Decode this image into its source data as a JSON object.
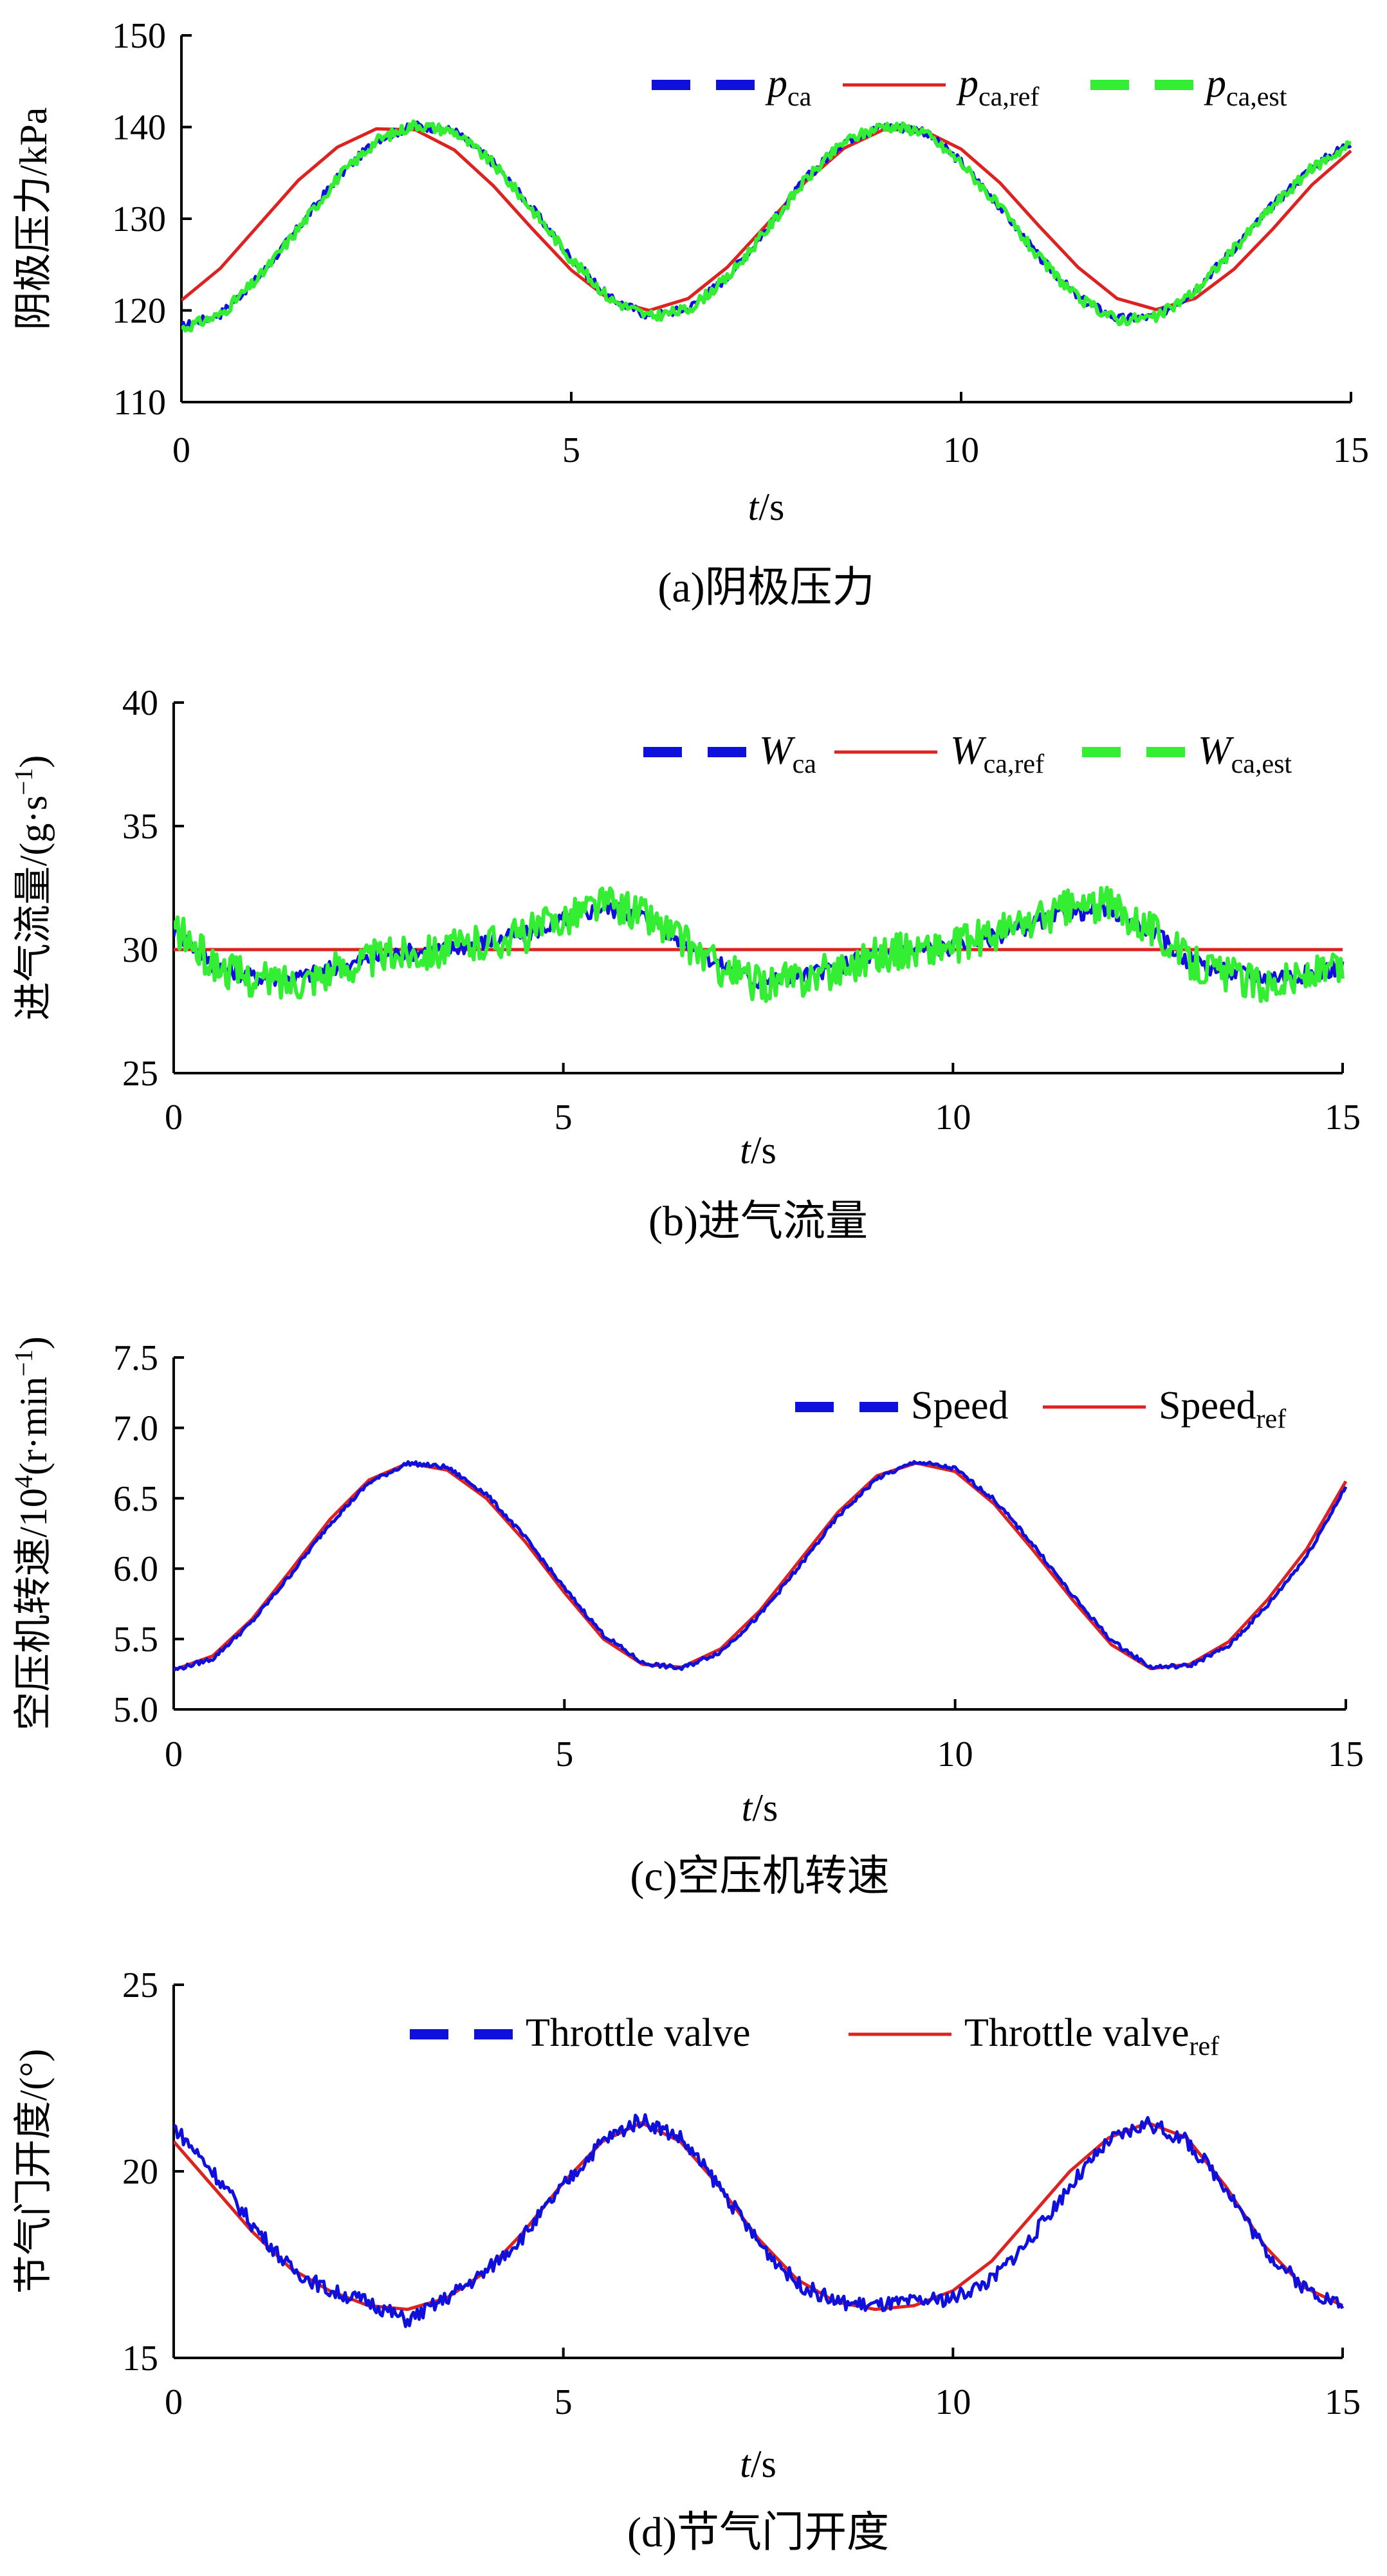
{
  "chart_data": [
    {
      "type": "line",
      "caption": "(a)阴极压力",
      "ylabel_main": "阴极压力/kPa",
      "ylabel_sup": "",
      "ylabel_tail": "",
      "xlabel_var": "t",
      "xlabel_unit": "/s",
      "xlim": [
        0,
        15
      ],
      "ylim": [
        110,
        150
      ],
      "xticks": [
        0,
        5,
        10,
        15
      ],
      "xtick_labels": [
        "0",
        "5",
        "10",
        "15"
      ],
      "yticks": [
        110,
        120,
        130,
        140,
        150
      ],
      "ytick_labels": [
        "110",
        "120",
        "130",
        "140",
        "150"
      ],
      "legend_position": "top-right",
      "series": [
        {
          "key": "meas",
          "label_main": "p",
          "label_sub": "ca",
          "color": "#1010dd",
          "style": "dashed-thick",
          "noise": 0.5,
          "x": [
            0,
            0.5,
            1,
            1.5,
            2,
            2.5,
            3,
            3.5,
            4,
            4.5,
            5,
            5.5,
            6,
            6.5,
            7,
            7.5,
            8,
            8.5,
            9,
            9.5,
            10,
            10.5,
            11,
            11.5,
            12,
            12.5,
            13,
            13.5,
            14,
            14.5,
            15
          ],
          "y": [
            118.2,
            119.6,
            123.7,
            129.0,
            134.5,
            138.6,
            140.2,
            139.6,
            136.1,
            131.1,
            125.7,
            121.3,
            119.4,
            120.2,
            123.6,
            128.8,
            134.3,
            138.5,
            140.1,
            139.7,
            136.2,
            131.3,
            125.8,
            121.4,
            119.1,
            119.3,
            122.2,
            126.8,
            131.5,
            135.6,
            138.4
          ]
        },
        {
          "key": "ref",
          "label_main": "p",
          "label_sub": "ca,ref",
          "color": "#dd2222",
          "style": "solid",
          "x": [
            0,
            0.5,
            1,
            1.5,
            2,
            2.5,
            3,
            3.5,
            4,
            4.5,
            5,
            5.5,
            6,
            6.5,
            7,
            7.5,
            8,
            8.5,
            9,
            9.5,
            10,
            10.5,
            11,
            11.5,
            12,
            12.5,
            13,
            13.5,
            14,
            14.5,
            15
          ],
          "y": [
            121.1,
            124.6,
            129.4,
            134.2,
            137.8,
            139.8,
            139.7,
            137.5,
            133.6,
            128.9,
            124.4,
            121.1,
            120.0,
            121.3,
            124.7,
            129.3,
            134.0,
            137.7,
            139.7,
            139.7,
            137.6,
            133.9,
            129.2,
            124.7,
            121.3,
            120.1,
            121.3,
            124.5,
            128.9,
            133.7,
            137.4
          ]
        },
        {
          "key": "est",
          "label_main": "p",
          "label_sub": "ca,est",
          "color": "#33ee33",
          "style": "dashed-thick",
          "noise": 0.6,
          "x": [
            0,
            0.5,
            1,
            1.5,
            2,
            2.5,
            3,
            3.5,
            4,
            4.5,
            5,
            5.5,
            6,
            6.5,
            7,
            7.5,
            8,
            8.5,
            9,
            9.5,
            10,
            10.5,
            11,
            11.5,
            12,
            12.5,
            13,
            13.5,
            14,
            14.5,
            15
          ],
          "y": [
            118.0,
            119.5,
            123.6,
            128.9,
            134.4,
            138.5,
            140.3,
            139.5,
            136.0,
            131.0,
            125.6,
            121.2,
            119.3,
            120.1,
            123.5,
            128.7,
            134.2,
            138.4,
            140.2,
            139.6,
            136.1,
            131.2,
            125.7,
            121.3,
            119.0,
            119.2,
            122.1,
            126.7,
            131.4,
            135.5,
            138.2
          ]
        }
      ]
    },
    {
      "type": "line",
      "caption": "(b)进气流量",
      "ylabel_main": "进气流量/(g·s",
      "ylabel_sup": "−1",
      "ylabel_tail": ")",
      "xlabel_var": "t",
      "xlabel_unit": "/s",
      "xlim": [
        0,
        15
      ],
      "ylim": [
        25,
        40
      ],
      "xticks": [
        0,
        5,
        10,
        15
      ],
      "xtick_labels": [
        "0",
        "5",
        "10",
        "15"
      ],
      "yticks": [
        25,
        30,
        35,
        40
      ],
      "ytick_labels": [
        "25",
        "30",
        "35",
        "40"
      ],
      "legend_position": "top-right",
      "series": [
        {
          "key": "meas",
          "label_main": "W",
          "label_sub": "ca",
          "color": "#1010dd",
          "style": "dashed-thick",
          "noise": 0.35,
          "x": [
            0,
            0.5,
            1,
            1.5,
            2,
            2.5,
            3,
            3.5,
            4,
            4.5,
            5,
            5.5,
            6,
            6.5,
            7,
            7.5,
            8,
            8.5,
            9,
            9.5,
            10,
            10.5,
            11,
            11.5,
            12,
            12.5,
            13,
            13.5,
            14,
            14.5,
            15
          ],
          "y": [
            30.8,
            29.4,
            28.9,
            28.8,
            29.2,
            29.6,
            29.9,
            30.0,
            30.3,
            30.6,
            31.2,
            31.7,
            31.4,
            30.4,
            29.4,
            28.7,
            28.9,
            29.3,
            29.8,
            30.0,
            30.1,
            30.5,
            31.0,
            31.5,
            31.6,
            30.9,
            29.6,
            29.1,
            28.9,
            29.0,
            29.3
          ]
        },
        {
          "key": "ref",
          "label_main": "W",
          "label_sub": "ca,ref",
          "color": "#dd2222",
          "style": "solid",
          "x": [
            0,
            15
          ],
          "y": [
            30.0,
            30.0
          ]
        },
        {
          "key": "est",
          "label_main": "W",
          "label_sub": "ca,est",
          "color": "#33ee33",
          "style": "dashed-thick",
          "noise": 0.75,
          "x": [
            0,
            0.5,
            1,
            1.5,
            2,
            2.5,
            3,
            3.5,
            4,
            4.5,
            5,
            5.5,
            6,
            6.5,
            7,
            7.5,
            8,
            8.5,
            9,
            9.5,
            10,
            10.5,
            11,
            11.5,
            12,
            12.5,
            13,
            13.5,
            14,
            14.5,
            15
          ],
          "y": [
            30.9,
            29.4,
            28.8,
            28.7,
            29.1,
            29.6,
            29.9,
            30.0,
            30.3,
            30.6,
            31.3,
            31.9,
            31.5,
            30.4,
            29.3,
            28.6,
            28.8,
            29.2,
            29.8,
            30.0,
            30.1,
            30.6,
            31.1,
            31.7,
            31.8,
            31.0,
            29.6,
            29.0,
            28.6,
            28.9,
            29.2
          ]
        }
      ]
    },
    {
      "type": "line",
      "caption": "(c)空压机转速",
      "ylabel_main": "空压机转速/10",
      "ylabel_sup": "4",
      "ylabel_tail": "(r·min",
      "ylabel_sup2": "−1",
      "ylabel_tail2": ")",
      "xlabel_var": "t",
      "xlabel_unit": "/s",
      "xlim": [
        0,
        15
      ],
      "ylim": [
        5.0,
        7.5
      ],
      "xticks": [
        0,
        5,
        10,
        15
      ],
      "xtick_labels": [
        "0",
        "5",
        "10",
        "15"
      ],
      "yticks": [
        5.0,
        5.5,
        6.0,
        6.5,
        7.0,
        7.5
      ],
      "ytick_labels": [
        "5.0",
        "5.5",
        "6.0",
        "6.5",
        "7.0",
        "7.5"
      ],
      "legend_position": "top-right",
      "series": [
        {
          "key": "meas",
          "label_main": "Speed",
          "label_sub": "",
          "color": "#1010dd",
          "style": "dashed-thick",
          "noise": 0.015,
          "x": [
            0,
            0.5,
            1,
            1.5,
            2,
            2.5,
            3,
            3.5,
            4,
            4.5,
            5,
            5.5,
            6,
            6.5,
            7,
            7.5,
            8,
            8.5,
            9,
            9.5,
            10,
            10.5,
            11,
            11.5,
            12,
            12.5,
            13,
            13.5,
            14,
            14.5,
            15
          ],
          "y": [
            5.28,
            5.36,
            5.62,
            5.96,
            6.32,
            6.61,
            6.75,
            6.72,
            6.53,
            6.22,
            5.86,
            5.53,
            5.33,
            5.29,
            5.41,
            5.67,
            6.01,
            6.37,
            6.64,
            6.76,
            6.71,
            6.49,
            6.17,
            5.81,
            5.49,
            5.3,
            5.31,
            5.45,
            5.74,
            6.09,
            6.58
          ]
        },
        {
          "key": "ref",
          "label_main": "Speed",
          "label_sub": "ref",
          "color": "#dd2222",
          "style": "solid",
          "x": [
            0,
            0.5,
            1,
            1.5,
            2,
            2.5,
            3,
            3.5,
            4,
            4.5,
            5,
            5.5,
            6,
            6.5,
            7,
            7.5,
            8,
            8.5,
            9,
            9.5,
            10,
            10.5,
            11,
            11.5,
            12,
            12.5,
            13,
            13.5,
            14,
            14.5,
            15
          ],
          "y": [
            5.28,
            5.38,
            5.64,
            5.99,
            6.35,
            6.63,
            6.75,
            6.7,
            6.5,
            6.19,
            5.83,
            5.5,
            5.32,
            5.3,
            5.43,
            5.7,
            6.05,
            6.4,
            6.66,
            6.75,
            6.69,
            6.46,
            6.13,
            5.78,
            5.46,
            5.29,
            5.32,
            5.48,
            5.78,
            6.14,
            6.62
          ]
        }
      ]
    },
    {
      "type": "line",
      "caption": "(d)节气门开度",
      "ylabel_main": "节气门开度/(°)",
      "ylabel_sup": "",
      "ylabel_tail": "",
      "xlabel_var": "t",
      "xlabel_unit": "/s",
      "xlim": [
        0,
        15
      ],
      "ylim": [
        15,
        25
      ],
      "xticks": [
        0,
        5,
        10,
        15
      ],
      "xtick_labels": [
        "0",
        "5",
        "10",
        "15"
      ],
      "yticks": [
        15,
        20,
        25
      ],
      "ytick_labels": [
        "15",
        "20",
        "25"
      ],
      "legend_position": "top-right",
      "series": [
        {
          "key": "meas",
          "label_main": "Throttle valve",
          "label_sub": "",
          "color": "#1010dd",
          "style": "dashed-thick",
          "noise": 0.2,
          "x": [
            0,
            0.5,
            1,
            1.5,
            2,
            2.5,
            3,
            3.5,
            4,
            4.5,
            5,
            5.5,
            6,
            6.5,
            7,
            7.5,
            8,
            8.5,
            9,
            9.5,
            10,
            10.5,
            11,
            11.5,
            12,
            12.5,
            13,
            13.5,
            14,
            14.5,
            15
          ],
          "y": [
            21.2,
            20.0,
            18.6,
            17.4,
            16.8,
            16.5,
            16.0,
            16.6,
            17.3,
            18.3,
            19.6,
            20.8,
            21.4,
            20.9,
            19.6,
            18.1,
            17.0,
            16.5,
            16.4,
            16.5,
            16.6,
            17.1,
            18.2,
            19.6,
            20.8,
            21.3,
            20.8,
            19.6,
            17.9,
            16.9,
            16.4
          ]
        },
        {
          "key": "ref",
          "label_main": "Throttle valve",
          "label_sub": "ref",
          "color": "#dd2222",
          "style": "solid",
          "x": [
            0,
            0.5,
            1,
            1.5,
            2,
            2.5,
            3,
            3.5,
            4,
            4.5,
            5,
            5.5,
            6,
            6.5,
            7,
            7.5,
            8,
            8.5,
            9,
            9.5,
            10,
            10.5,
            11,
            11.5,
            12,
            12.5,
            13,
            13.5,
            14,
            14.5,
            15
          ],
          "y": [
            20.8,
            19.6,
            18.4,
            17.4,
            16.8,
            16.4,
            16.3,
            16.6,
            17.3,
            18.4,
            19.7,
            20.8,
            21.3,
            20.8,
            19.6,
            18.2,
            17.1,
            16.5,
            16.3,
            16.4,
            16.8,
            17.6,
            18.8,
            20.0,
            20.9,
            21.3,
            20.9,
            19.6,
            18.0,
            16.9,
            16.4
          ]
        }
      ]
    }
  ]
}
